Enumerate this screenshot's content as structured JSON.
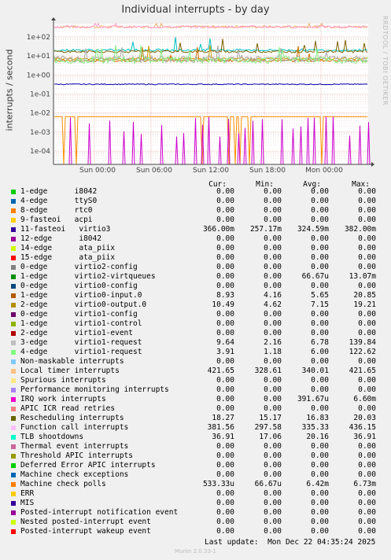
{
  "chart_data": {
    "type": "line",
    "title": "Individual interrupts - by day",
    "ylabel": "interrupts / second",
    "yscale": "log",
    "ylim": [
      2e-05,
      500
    ],
    "yticks": [
      "1e+02",
      "1e+01",
      "1e+00",
      "1e-01",
      "1e-02",
      "1e-03",
      "1e-04"
    ],
    "xticks": [
      "Sun 00:00",
      "Sun 06:00",
      "Sun 12:00",
      "Sun 18:00",
      "Mon 00:00"
    ],
    "grid": true,
    "series": [
      {
        "name": "Local timer interrupts",
        "color": "#f0b060",
        "level": 340.01
      },
      {
        "name": "Function call interrupts",
        "color": "#ff99cc",
        "level": 335.33
      },
      {
        "name": "11-fasteoi virtio3",
        "color": "#0000aa",
        "level": 0.32459
      },
      {
        "name": "TLB shootdowns",
        "color": "#00c0c0",
        "level": 20.16
      },
      {
        "name": "Rescheduling interrupts",
        "color": "#806000",
        "level": 16.83
      },
      {
        "name": "1-edge virtio0-input.0",
        "color": "#cc7000",
        "level": 5.65
      },
      {
        "name": "2-edge virtio0-output.0",
        "color": "#cc9900",
        "level": 7.15
      },
      {
        "name": "3-edge virtio1-request",
        "color": "#aaaaaa",
        "level": 6.78
      },
      {
        "name": "4-edge virtio1-request",
        "color": "#88ee88",
        "level": 6.0
      },
      {
        "name": "Machine check polls",
        "color": "#ff9000",
        "level": 0.00642
      },
      {
        "name": "IRQ work interrupts",
        "color": "#cc00cc",
        "level": 0.00039167
      }
    ]
  },
  "watermark": "RRDTOOL / TOBI OETIKER",
  "legend_header": {
    "cur": "Cur:",
    "min": "Min:",
    "avg": "Avg:",
    "max": "Max:"
  },
  "legend": [
    {
      "label": "1-edge      i8042",
      "color": "#00cc00",
      "cur": "0.00",
      "min": "0.00",
      "avg": "0.00",
      "max": "0.00"
    },
    {
      "label": "4-edge      ttyS0",
      "color": "#0066b3",
      "cur": "0.00",
      "min": "0.00",
      "avg": "0.00",
      "max": "0.00"
    },
    {
      "label": "8-edge      rtc0",
      "color": "#ff8000",
      "cur": "0.00",
      "min": "0.00",
      "avg": "0.00",
      "max": "0.00"
    },
    {
      "label": "9-fasteoi   acpi",
      "color": "#ffcc00",
      "cur": "0.00",
      "min": "0.00",
      "avg": "0.00",
      "max": "0.00"
    },
    {
      "label": "11-fasteoi   virtio3",
      "color": "#330099",
      "cur": "366.00m",
      "min": "257.17m",
      "avg": "324.59m",
      "max": "382.00m"
    },
    {
      "label": "12-edge      i8042",
      "color": "#990099",
      "cur": "0.00",
      "min": "0.00",
      "avg": "0.00",
      "max": "0.00"
    },
    {
      "label": "14-edge      ata_piix",
      "color": "#ccff00",
      "cur": "0.00",
      "min": "0.00",
      "avg": "0.00",
      "max": "0.00"
    },
    {
      "label": "15-edge      ata_piix",
      "color": "#ff0000",
      "cur": "0.00",
      "min": "0.00",
      "avg": "0.00",
      "max": "0.00"
    },
    {
      "label": "0-edge      virtio2-config",
      "color": "#808080",
      "cur": "0.00",
      "min": "0.00",
      "avg": "0.00",
      "max": "0.00"
    },
    {
      "label": "1-edge      virtio2-virtqueues",
      "color": "#008f00",
      "cur": "0.00",
      "min": "0.00",
      "avg": "66.67u",
      "max": "13.07m"
    },
    {
      "label": "0-edge      virtio0-config",
      "color": "#00487d",
      "cur": "0.00",
      "min": "0.00",
      "avg": "0.00",
      "max": "0.00"
    },
    {
      "label": "1-edge      virtio0-input.0",
      "color": "#b35a00",
      "cur": "8.93",
      "min": "4.16",
      "avg": "5.65",
      "max": "20.85"
    },
    {
      "label": "2-edge      virtio0-output.0",
      "color": "#b38f00",
      "cur": "10.49",
      "min": "4.62",
      "avg": "7.15",
      "max": "19.21"
    },
    {
      "label": "0-edge      virtio1-config",
      "color": "#6b006b",
      "cur": "0.00",
      "min": "0.00",
      "avg": "0.00",
      "max": "0.00"
    },
    {
      "label": "1-edge      virtio1-control",
      "color": "#8fb300",
      "cur": "0.00",
      "min": "0.00",
      "avg": "0.00",
      "max": "0.00"
    },
    {
      "label": "2-edge      virtio1-event",
      "color": "#b30000",
      "cur": "0.00",
      "min": "0.00",
      "avg": "0.00",
      "max": "0.00"
    },
    {
      "label": "3-edge      virtio1-request",
      "color": "#bebebe",
      "cur": "9.64",
      "min": "2.16",
      "avg": "6.78",
      "max": "139.84"
    },
    {
      "label": "4-edge      virtio1-request",
      "color": "#80ff80",
      "cur": "3.91",
      "min": "1.18",
      "avg": "6.00",
      "max": "122.62"
    },
    {
      "label": "Non-maskable interrupts",
      "color": "#80c9ff",
      "cur": "0.00",
      "min": "0.00",
      "avg": "0.00",
      "max": "0.00"
    },
    {
      "label": "Local timer interrupts",
      "color": "#ffc080",
      "cur": "421.65",
      "min": "328.61",
      "avg": "340.01",
      "max": "421.65"
    },
    {
      "label": "Spurious interrupts",
      "color": "#ffe680",
      "cur": "0.00",
      "min": "0.00",
      "avg": "0.00",
      "max": "0.00"
    },
    {
      "label": "Performance monitoring interrupts",
      "color": "#aa80ff",
      "cur": "0.00",
      "min": "0.00",
      "avg": "0.00",
      "max": "0.00"
    },
    {
      "label": "IRQ work interrupts",
      "color": "#ee00cc",
      "cur": "0.00",
      "min": "0.00",
      "avg": "391.67u",
      "max": "6.60m"
    },
    {
      "label": "APIC ICR read retries",
      "color": "#ff8080",
      "cur": "0.00",
      "min": "0.00",
      "avg": "0.00",
      "max": "0.00"
    },
    {
      "label": "Rescheduling interrupts",
      "color": "#666600",
      "cur": "18.27",
      "min": "15.17",
      "avg": "16.83",
      "max": "20.03"
    },
    {
      "label": "Function call interrupts",
      "color": "#ffbfff",
      "cur": "381.56",
      "min": "297.58",
      "avg": "335.33",
      "max": "436.15"
    },
    {
      "label": "TLB shootdowns",
      "color": "#00ffcc",
      "cur": "36.91",
      "min": "17.06",
      "avg": "20.16",
      "max": "36.91"
    },
    {
      "label": "Thermal event interrupts",
      "color": "#cc6699",
      "cur": "0.00",
      "min": "0.00",
      "avg": "0.00",
      "max": "0.00"
    },
    {
      "label": "Threshold APIC interrupts",
      "color": "#999900",
      "cur": "0.00",
      "min": "0.00",
      "avg": "0.00",
      "max": "0.00"
    },
    {
      "label": "Deferred Error APIC interrupts",
      "color": "#00cc00",
      "cur": "0.00",
      "min": "0.00",
      "avg": "0.00",
      "max": "0.00"
    },
    {
      "label": "Machine check exceptions",
      "color": "#0066b3",
      "cur": "0.00",
      "min": "0.00",
      "avg": "0.00",
      "max": "0.00"
    },
    {
      "label": "Machine check polls",
      "color": "#ff8000",
      "cur": "533.33u",
      "min": "66.67u",
      "avg": "6.42m",
      "max": "6.73m"
    },
    {
      "label": "ERR",
      "color": "#ffcc00",
      "cur": "0.00",
      "min": "0.00",
      "avg": "0.00",
      "max": "0.00"
    },
    {
      "label": "MIS",
      "color": "#330099",
      "cur": "0.00",
      "min": "0.00",
      "avg": "0.00",
      "max": "0.00"
    },
    {
      "label": "Posted-interrupt notification event",
      "color": "#990099",
      "cur": "0.00",
      "min": "0.00",
      "avg": "0.00",
      "max": "0.00"
    },
    {
      "label": "Nested posted-interrupt event",
      "color": "#ccff00",
      "cur": "0.00",
      "min": "0.00",
      "avg": "0.00",
      "max": "0.00"
    },
    {
      "label": "Posted-interrupt wakeup event",
      "color": "#ff0000",
      "cur": "0.00",
      "min": "0.00",
      "avg": "0.00",
      "max": "0.00"
    }
  ],
  "last_update": "Last update:  Mon Dec 22 04:35:24 2025",
  "footer": "Munin 2.0.33-1"
}
